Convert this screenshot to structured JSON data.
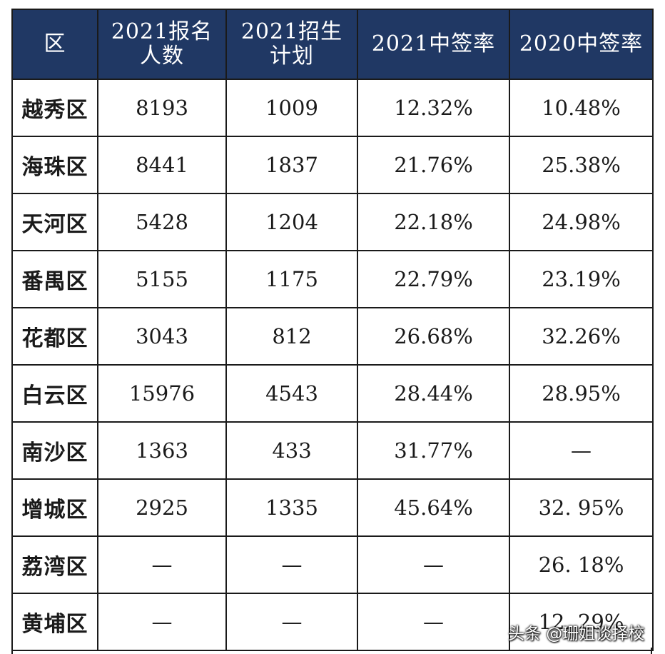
{
  "table": {
    "headers": [
      {
        "line1": "区",
        "line2": ""
      },
      {
        "line1": "2021报名",
        "line2": "人数"
      },
      {
        "line1": "2021招生",
        "line2": "计划"
      },
      {
        "line1": "2021中签率",
        "line2": ""
      },
      {
        "line1": "2020中签率",
        "line2": ""
      }
    ],
    "rows": [
      [
        "越秀区",
        "8193",
        "1009",
        "12.32%",
        "10.48%"
      ],
      [
        "海珠区",
        "8441",
        "1837",
        "21.76%",
        "25.38%"
      ],
      [
        "天河区",
        "5428",
        "1204",
        "22.18%",
        "24.98%"
      ],
      [
        "番禺区",
        "5155",
        "1175",
        "22.79%",
        "23.19%"
      ],
      [
        "花都区",
        "3043",
        "812",
        "26.68%",
        "32.26%"
      ],
      [
        "白云区",
        "15976",
        "4543",
        "28.44%",
        "28.95%"
      ],
      [
        "南沙区",
        "1363",
        "433",
        "31.77%",
        "—"
      ],
      [
        "增城区",
        "2925",
        "1335",
        "45.64%",
        "32. 95%"
      ],
      [
        "荔湾区",
        "—",
        "—",
        "—",
        "26. 18%"
      ],
      [
        "黄埔区",
        "—",
        "—",
        "—",
        "12. 29%"
      ]
    ]
  },
  "watermark": "头条 @珊姐谈择校"
}
